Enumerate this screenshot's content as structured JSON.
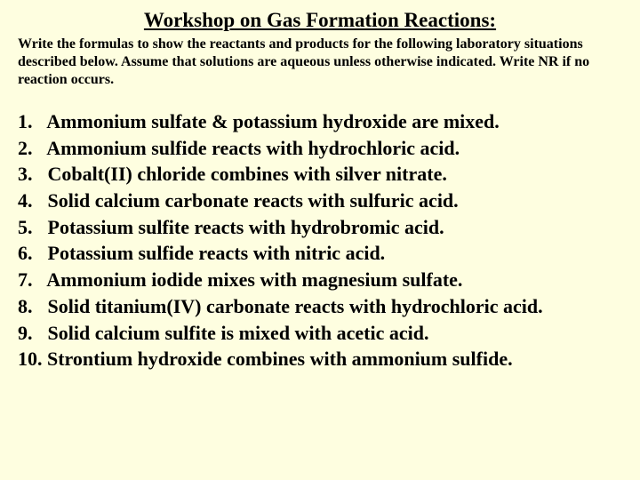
{
  "title": "Workshop on Gas Formation Reactions:",
  "instructions": "Write the formulas to show the reactants and products for the following laboratory situations described below.  Assume that solutions are aqueous unless otherwise indicated.  Write NR if no reaction occurs.",
  "items": {
    "i1": {
      "num": "1.",
      "text": "Ammonium sulfate & potassium hydroxide are mixed."
    },
    "i2": {
      "num": "2.",
      "text": "Ammonium sulfide reacts with hydrochloric acid."
    },
    "i3": {
      "num": "3.",
      "text": "Cobalt(II) chloride combines with silver nitrate."
    },
    "i4": {
      "num": "4.",
      "text": "Solid calcium carbonate reacts with sulfuric acid."
    },
    "i5": {
      "num": "5.",
      "text": "Potassium sulfite reacts with hydrobromic acid."
    },
    "i6": {
      "num": "6.",
      "text": "Potassium sulfide reacts with nitric acid."
    },
    "i7": {
      "num": "7.",
      "text": "Ammonium iodide mixes with magnesium sulfate."
    },
    "i8": {
      "num": "8.",
      "text": "Solid titanium(IV) carbonate reacts with hydrochloric acid."
    },
    "i9": {
      "num": "9.",
      "text": "Solid calcium sulfite is mixed with acetic acid."
    },
    "i10": {
      "num": "10.",
      "text": "Strontium hydroxide combines with ammonium sulfide."
    }
  },
  "colors": {
    "background": "#fefee0",
    "text": "#000000"
  }
}
